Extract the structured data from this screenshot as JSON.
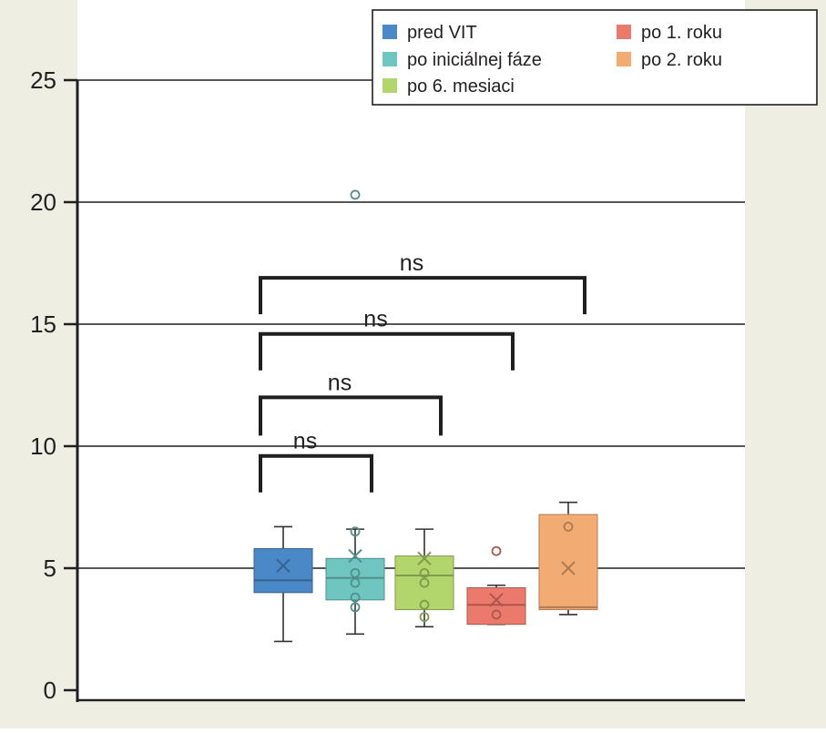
{
  "chart_data": {
    "type": "box",
    "title": "",
    "xlabel": "",
    "ylabel": "",
    "ylim": [
      0,
      25
    ],
    "yticks": [
      0,
      5,
      10,
      15,
      20,
      25
    ],
    "grid": true,
    "legend_position": "top-right",
    "series": [
      {
        "name": "pred VIT",
        "color": "#4a88c8",
        "min": 2.0,
        "q1": 4.0,
        "median": 4.5,
        "q3": 5.8,
        "max": 6.7,
        "mean": 5.1,
        "points": []
      },
      {
        "name": "po iniciálnej fáze",
        "color": "#6fc6c1",
        "min": 2.3,
        "q1": 3.7,
        "median": 4.6,
        "q3": 5.4,
        "max": 6.6,
        "mean": 5.5,
        "points": [
          3.4,
          3.8,
          4.4,
          4.8,
          6.5,
          20.3
        ]
      },
      {
        "name": "po 6. mesiaci",
        "color": "#b2d66b",
        "min": 2.6,
        "q1": 3.3,
        "median": 4.7,
        "q3": 5.5,
        "max": 6.6,
        "mean": 5.4,
        "points": [
          3.0,
          3.5,
          4.4,
          4.8
        ]
      },
      {
        "name": "po 1. roku",
        "color": "#ec7a6c",
        "min": 2.7,
        "q1": 2.7,
        "median": 3.5,
        "q3": 4.2,
        "max": 4.3,
        "mean": 3.7,
        "points": [
          3.1,
          5.7
        ]
      },
      {
        "name": "po 2. roku",
        "color": "#f2ab72",
        "min": 3.1,
        "q1": 3.3,
        "median": 3.4,
        "q3": 7.2,
        "max": 7.7,
        "mean": 5.0,
        "points": [
          6.7
        ]
      }
    ],
    "significance": [
      {
        "from": 0,
        "to": 1,
        "y": 9.6,
        "label": "ns"
      },
      {
        "from": 0,
        "to": 2,
        "y": 12.0,
        "label": "ns"
      },
      {
        "from": 0,
        "to": 3,
        "y": 14.6,
        "label": "ns"
      },
      {
        "from": 0,
        "to": 4,
        "y": 16.9,
        "label": "ns"
      }
    ]
  }
}
